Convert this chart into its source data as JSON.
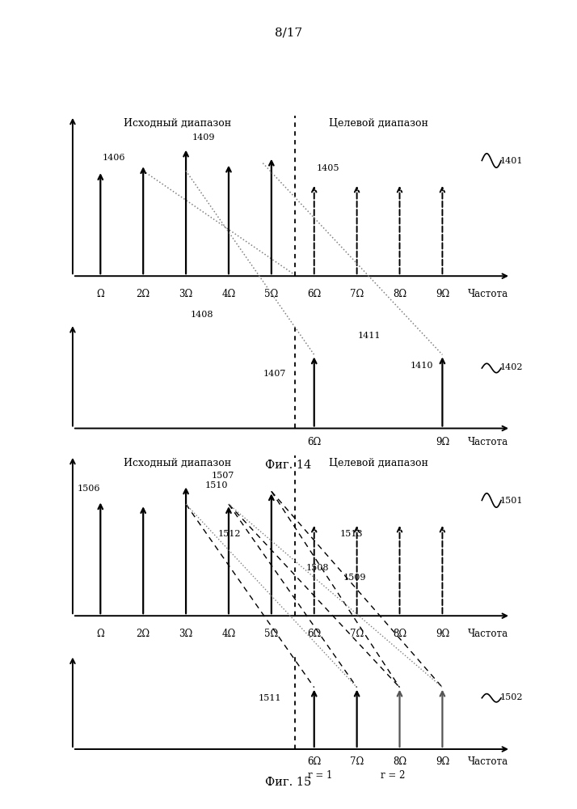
{
  "page_label": "8/17",
  "fig14_label": "Фиг. 14",
  "fig15_label": "Фиг. 15",
  "source_label": "Исходный диапазон",
  "target_label": "Целевой диапазон",
  "freq_label": "Частота",
  "omega_src": [
    "Ω",
    "2Ω",
    "3Ω",
    "4Ω",
    "5Ω"
  ],
  "omega_tgt": [
    "6Ω",
    "7Ω",
    "8Ω",
    "9Ω"
  ],
  "bg_color": "#ffffff"
}
